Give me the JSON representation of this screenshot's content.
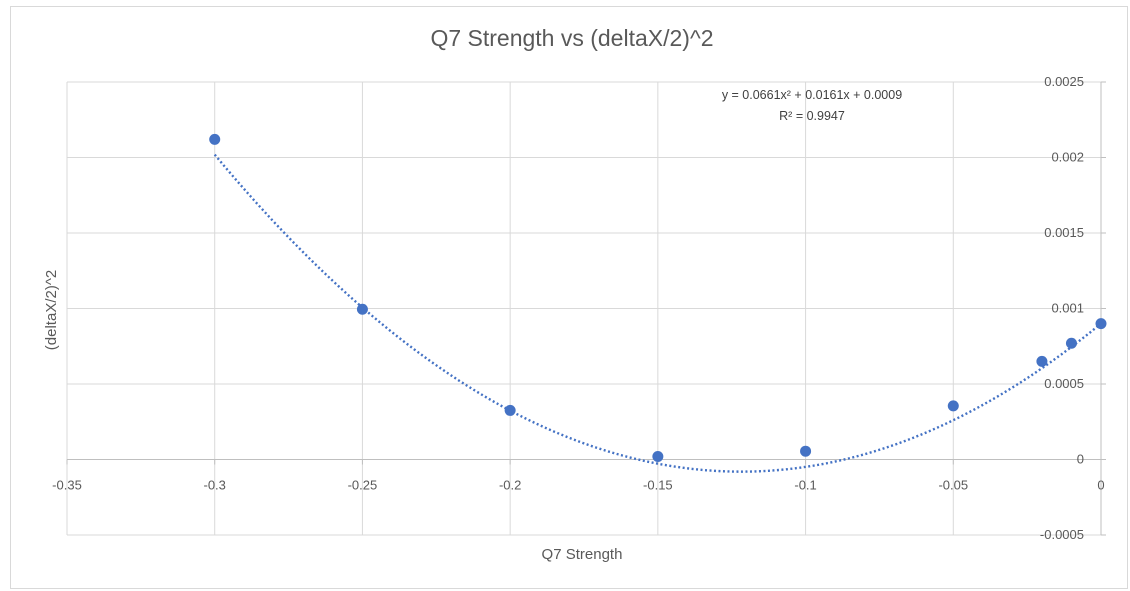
{
  "chart_data": {
    "type": "scatter",
    "title": "Q7 Strength vs (deltaX/2)^2",
    "xlabel": "Q7 Strength",
    "ylabel": "(deltaX/2)^2",
    "xlim": [
      -0.35,
      0
    ],
    "ylim": [
      -0.0005,
      0.0025
    ],
    "x_ticks": [
      -0.35,
      -0.3,
      -0.25,
      -0.2,
      -0.15,
      -0.1,
      -0.05,
      0
    ],
    "x_tick_labels": [
      "-0.35",
      "-0.3",
      "-0.25",
      "-0.2",
      "-0.15",
      "-0.1",
      "-0.05",
      "0"
    ],
    "y_ticks": [
      -0.0005,
      0,
      0.0005,
      0.001,
      0.0015,
      0.002,
      0.0025
    ],
    "y_tick_labels": [
      "-0.0005",
      "0",
      "0.0005",
      "0.001",
      "0.0015",
      "0.002",
      "0.0025"
    ],
    "grid": true,
    "y_axis_position": "right",
    "point_color": "#4472c4",
    "trendline_color": "#4472c4",
    "series": [
      {
        "x": [
          -0.3,
          -0.25,
          -0.2,
          -0.15,
          -0.1,
          -0.05,
          -0.02,
          -0.01,
          0
        ],
        "y": [
          0.00212,
          0.000995,
          0.000325,
          2e-05,
          5.5e-05,
          0.000355,
          0.00065,
          0.00077,
          0.0009
        ]
      }
    ],
    "trendline": {
      "type": "polynomial",
      "coefficients": [
        0.0661,
        0.0161,
        0.0009
      ],
      "equation": "y = 0.0661x² + 0.0161x + 0.0009",
      "r_squared": "R² = 0.9947"
    }
  }
}
